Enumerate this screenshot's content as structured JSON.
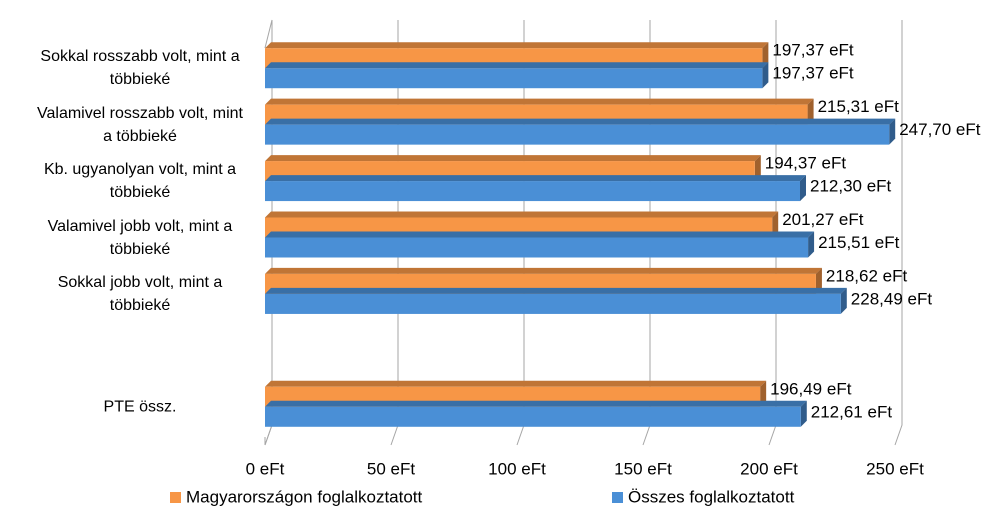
{
  "chart_data": {
    "type": "bar",
    "orientation": "horizontal",
    "categories": [
      "Sokkal rosszabb volt, mint a többieké",
      "Valamivel rosszabb volt, mint a többieké",
      "Kb. ugyanolyan volt, mint a többieké",
      "Valamivel jobb volt, mint a többieké",
      "Sokkal jobb volt, mint a többieké",
      null,
      "PTE össz."
    ],
    "series": [
      {
        "name": "Magyarországon foglalkoztatott",
        "color": "#f79646",
        "values": [
          197.37,
          215.31,
          194.37,
          201.27,
          218.62,
          null,
          196.49
        ],
        "value_labels": [
          "197,37 eFt",
          "215,31 eFt",
          "194,37 eFt",
          "201,27 eFt",
          "218,62 eFt",
          null,
          "196,49 eFt"
        ]
      },
      {
        "name": "Összes foglalkoztatott",
        "color": "#4a8fd6",
        "values": [
          197.37,
          247.7,
          212.3,
          215.51,
          228.49,
          null,
          212.61
        ],
        "value_labels": [
          "197,37 eFt",
          "247,70 eFt",
          "212,30 eFt",
          "215,51 eFt",
          "228,49 eFt",
          null,
          "212,61 eFt"
        ]
      }
    ],
    "xlim": [
      0,
      250
    ],
    "xticks": [
      {
        "value": 0,
        "label": "0 eFt"
      },
      {
        "value": 50,
        "label": "50 eFt"
      },
      {
        "value": 100,
        "label": "100 eFt"
      },
      {
        "value": 150,
        "label": "150 eFt"
      },
      {
        "value": 200,
        "label": "200 eFt"
      },
      {
        "value": 250,
        "label": "250 eFt"
      }
    ],
    "grid": true,
    "legend": "bottom"
  }
}
